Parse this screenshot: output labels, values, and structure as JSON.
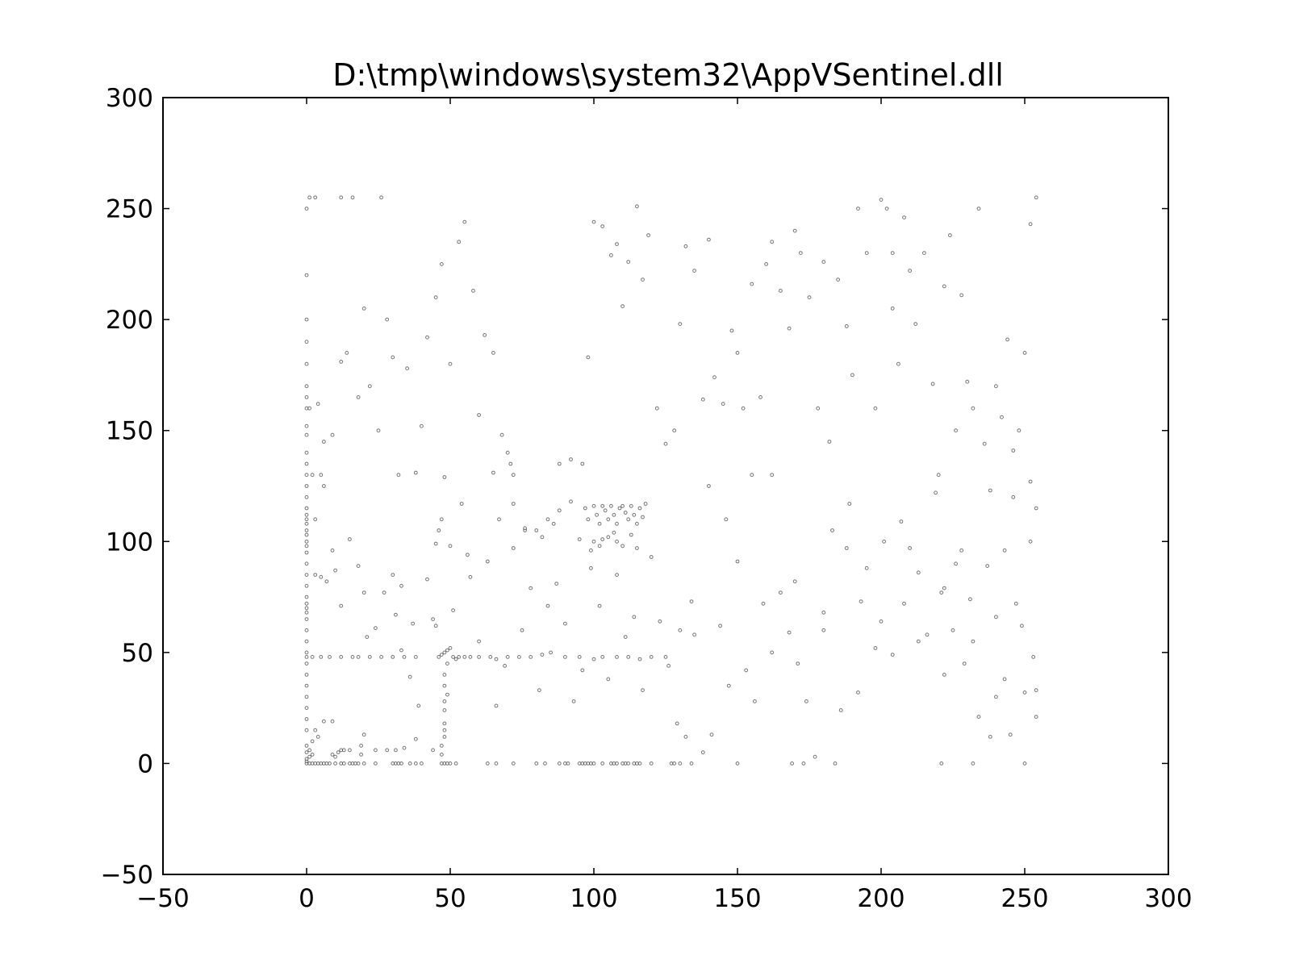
{
  "chart_data": {
    "type": "scatter",
    "title": "D:\\tmp\\windows\\system32\\AppVSentinel.dll",
    "xlabel": "",
    "ylabel": "",
    "xlim": [
      -50,
      300
    ],
    "ylim": [
      -50,
      300
    ],
    "xticks": [
      -50,
      0,
      50,
      100,
      150,
      200,
      250,
      300
    ],
    "yticks": [
      -50,
      0,
      50,
      100,
      150,
      200,
      250,
      300
    ],
    "xtick_labels": [
      "−50",
      "0",
      "50",
      "100",
      "150",
      "200",
      "250",
      "300"
    ],
    "ytick_labels": [
      "−50",
      "0",
      "50",
      "100",
      "150",
      "200",
      "250",
      "300"
    ],
    "grid": false,
    "marker_color": "#000000",
    "points": [
      [
        0,
        0
      ],
      [
        1,
        0
      ],
      [
        2,
        0
      ],
      [
        3,
        0
      ],
      [
        4,
        0
      ],
      [
        5,
        0
      ],
      [
        6,
        0
      ],
      [
        7,
        0
      ],
      [
        8,
        0
      ],
      [
        10,
        0
      ],
      [
        12,
        0
      ],
      [
        13,
        0
      ],
      [
        15,
        0
      ],
      [
        16,
        0
      ],
      [
        17,
        0
      ],
      [
        18,
        0
      ],
      [
        20,
        0
      ],
      [
        24,
        0
      ],
      [
        30,
        0
      ],
      [
        31,
        0
      ],
      [
        32,
        0
      ],
      [
        33,
        0
      ],
      [
        36,
        0
      ],
      [
        38,
        0
      ],
      [
        40,
        0
      ],
      [
        47,
        0
      ],
      [
        48,
        0
      ],
      [
        49,
        0
      ],
      [
        50,
        0
      ],
      [
        52,
        0
      ],
      [
        63,
        0
      ],
      [
        66,
        0
      ],
      [
        72,
        0
      ],
      [
        80,
        0
      ],
      [
        83,
        0
      ],
      [
        88,
        0
      ],
      [
        90,
        0
      ],
      [
        91,
        0
      ],
      [
        95,
        0
      ],
      [
        96,
        0
      ],
      [
        97,
        0
      ],
      [
        98,
        0
      ],
      [
        99,
        0
      ],
      [
        100,
        0
      ],
      [
        103,
        0
      ],
      [
        106,
        0
      ],
      [
        107,
        0
      ],
      [
        108,
        0
      ],
      [
        110,
        0
      ],
      [
        111,
        0
      ],
      [
        112,
        0
      ],
      [
        114,
        0
      ],
      [
        115,
        0
      ],
      [
        116,
        0
      ],
      [
        120,
        0
      ],
      [
        127,
        0
      ],
      [
        128,
        0
      ],
      [
        130,
        0
      ],
      [
        134,
        0
      ],
      [
        150,
        0
      ],
      [
        169,
        0
      ],
      [
        173,
        0
      ],
      [
        184,
        0
      ],
      [
        221,
        0
      ],
      [
        232,
        0
      ],
      [
        250,
        0
      ],
      [
        0,
        1
      ],
      [
        0,
        2
      ],
      [
        1,
        3
      ],
      [
        2,
        4
      ],
      [
        0,
        5
      ],
      [
        1,
        6
      ],
      [
        0,
        8
      ],
      [
        2,
        10
      ],
      [
        4,
        12
      ],
      [
        3,
        15
      ],
      [
        6,
        19
      ],
      [
        9,
        19
      ],
      [
        12,
        6
      ],
      [
        13,
        6
      ],
      [
        15,
        6
      ],
      [
        19,
        4
      ],
      [
        19,
        8
      ],
      [
        9,
        4
      ],
      [
        10,
        3
      ],
      [
        11,
        5
      ],
      [
        20,
        13
      ],
      [
        24,
        6
      ],
      [
        28,
        6
      ],
      [
        31,
        6
      ],
      [
        34,
        7
      ],
      [
        38,
        11
      ],
      [
        44,
        6
      ],
      [
        47,
        4
      ],
      [
        47,
        8
      ],
      [
        48,
        12
      ],
      [
        48,
        15
      ],
      [
        48,
        18
      ],
      [
        48,
        24
      ],
      [
        48,
        28
      ],
      [
        49,
        31
      ],
      [
        48,
        35
      ],
      [
        48,
        40
      ],
      [
        49,
        45
      ],
      [
        0,
        15
      ],
      [
        0,
        20
      ],
      [
        0,
        25
      ],
      [
        0,
        30
      ],
      [
        0,
        35
      ],
      [
        0,
        40
      ],
      [
        0,
        45
      ],
      [
        0,
        48
      ],
      [
        0,
        50
      ],
      [
        0,
        55
      ],
      [
        0,
        60
      ],
      [
        0,
        65
      ],
      [
        0,
        68
      ],
      [
        0,
        70
      ],
      [
        0,
        72
      ],
      [
        0,
        75
      ],
      [
        0,
        80
      ],
      [
        0,
        85
      ],
      [
        0,
        90
      ],
      [
        0,
        95
      ],
      [
        0,
        98
      ],
      [
        0,
        100
      ],
      [
        0,
        103
      ],
      [
        0,
        105
      ],
      [
        0,
        108
      ],
      [
        0,
        110
      ],
      [
        0,
        112
      ],
      [
        0,
        115
      ],
      [
        0,
        120
      ],
      [
        0,
        125
      ],
      [
        0,
        130
      ],
      [
        0,
        135
      ],
      [
        0,
        140
      ],
      [
        0,
        148
      ],
      [
        0,
        152
      ],
      [
        0,
        160
      ],
      [
        0,
        165
      ],
      [
        0,
        170
      ],
      [
        0,
        180
      ],
      [
        0,
        190
      ],
      [
        0,
        200
      ],
      [
        0,
        220
      ],
      [
        0,
        250
      ],
      [
        1,
        255
      ],
      [
        3,
        255
      ],
      [
        12,
        255
      ],
      [
        16,
        255
      ],
      [
        26,
        255
      ],
      [
        2,
        48
      ],
      [
        5,
        48
      ],
      [
        8,
        48
      ],
      [
        12,
        48
      ],
      [
        16,
        48
      ],
      [
        18,
        48
      ],
      [
        22,
        48
      ],
      [
        26,
        48
      ],
      [
        30,
        48
      ],
      [
        34,
        48
      ],
      [
        38,
        48
      ],
      [
        46,
        48
      ],
      [
        47,
        49
      ],
      [
        48,
        50
      ],
      [
        49,
        51
      ],
      [
        50,
        52
      ],
      [
        51,
        48
      ],
      [
        52,
        47
      ],
      [
        53,
        48
      ],
      [
        55,
        48
      ],
      [
        57,
        48
      ],
      [
        60,
        48
      ],
      [
        64,
        48
      ],
      [
        66,
        47
      ],
      [
        70,
        48
      ],
      [
        74,
        48
      ],
      [
        78,
        48
      ],
      [
        82,
        49
      ],
      [
        85,
        50
      ],
      [
        90,
        48
      ],
      [
        95,
        48
      ],
      [
        100,
        47
      ],
      [
        103,
        48
      ],
      [
        108,
        48
      ],
      [
        112,
        48
      ],
      [
        116,
        47
      ],
      [
        120,
        48
      ],
      [
        125,
        48
      ],
      [
        97,
        115
      ],
      [
        98,
        110
      ],
      [
        100,
        116
      ],
      [
        101,
        112
      ],
      [
        102,
        108
      ],
      [
        103,
        116
      ],
      [
        104,
        114
      ],
      [
        105,
        110
      ],
      [
        106,
        116
      ],
      [
        107,
        112
      ],
      [
        108,
        108
      ],
      [
        109,
        115
      ],
      [
        110,
        116
      ],
      [
        111,
        113
      ],
      [
        112,
        110
      ],
      [
        113,
        116
      ],
      [
        114,
        112
      ],
      [
        115,
        108
      ],
      [
        116,
        115
      ],
      [
        117,
        111
      ],
      [
        118,
        117
      ],
      [
        100,
        100
      ],
      [
        102,
        98
      ],
      [
        105,
        102
      ],
      [
        108,
        100
      ],
      [
        110,
        98
      ],
      [
        113,
        103
      ],
      [
        115,
        97
      ],
      [
        99,
        96
      ],
      [
        103,
        101
      ],
      [
        107,
        104
      ],
      [
        2,
        130
      ],
      [
        5,
        130
      ],
      [
        3,
        85
      ],
      [
        5,
        84
      ],
      [
        7,
        82
      ],
      [
        10,
        87
      ],
      [
        20,
        77
      ],
      [
        31,
        67
      ],
      [
        33,
        80
      ],
      [
        37,
        63
      ],
      [
        44,
        65
      ],
      [
        45,
        99
      ],
      [
        46,
        105
      ],
      [
        47,
        110
      ],
      [
        48,
        129
      ],
      [
        50,
        98
      ],
      [
        56,
        94
      ],
      [
        65,
        131
      ],
      [
        67,
        110
      ],
      [
        70,
        140
      ],
      [
        71,
        135
      ],
      [
        72,
        130
      ],
      [
        76,
        105
      ],
      [
        82,
        102
      ],
      [
        86,
        108
      ],
      [
        88,
        114
      ],
      [
        92,
        118
      ],
      [
        96,
        135
      ],
      [
        130,
        60
      ],
      [
        134,
        73
      ],
      [
        140,
        125
      ],
      [
        146,
        110
      ],
      [
        155,
        130
      ],
      [
        162,
        130
      ],
      [
        170,
        82
      ],
      [
        180,
        60
      ],
      [
        188,
        97
      ],
      [
        193,
        73
      ],
      [
        200,
        64
      ],
      [
        204,
        205
      ],
      [
        208,
        72
      ],
      [
        213,
        55
      ],
      [
        222,
        79
      ],
      [
        226,
        90
      ],
      [
        232,
        55
      ],
      [
        240,
        30
      ],
      [
        245,
        13
      ],
      [
        252,
        127
      ],
      [
        254,
        115
      ],
      [
        1,
        160
      ],
      [
        4,
        162
      ],
      [
        6,
        145
      ],
      [
        9,
        148
      ],
      [
        12,
        181
      ],
      [
        14,
        185
      ],
      [
        18,
        165
      ],
      [
        20,
        205
      ],
      [
        22,
        170
      ],
      [
        25,
        150
      ],
      [
        28,
        200
      ],
      [
        30,
        183
      ],
      [
        32,
        130
      ],
      [
        35,
        178
      ],
      [
        38,
        131
      ],
      [
        40,
        152
      ],
      [
        42,
        192
      ],
      [
        45,
        210
      ],
      [
        47,
        225
      ],
      [
        50,
        180
      ],
      [
        53,
        235
      ],
      [
        55,
        244
      ],
      [
        58,
        213
      ],
      [
        60,
        157
      ],
      [
        62,
        193
      ],
      [
        65,
        185
      ],
      [
        68,
        148
      ],
      [
        72,
        117
      ],
      [
        76,
        106
      ],
      [
        80,
        105
      ],
      [
        84,
        110
      ],
      [
        88,
        135
      ],
      [
        92,
        137
      ],
      [
        95,
        101
      ],
      [
        98,
        183
      ],
      [
        100,
        244
      ],
      [
        103,
        242
      ],
      [
        106,
        229
      ],
      [
        108,
        234
      ],
      [
        110,
        206
      ],
      [
        112,
        226
      ],
      [
        115,
        251
      ],
      [
        117,
        218
      ],
      [
        119,
        238
      ],
      [
        122,
        160
      ],
      [
        125,
        144
      ],
      [
        128,
        150
      ],
      [
        130,
        198
      ],
      [
        132,
        233
      ],
      [
        135,
        222
      ],
      [
        138,
        164
      ],
      [
        140,
        236
      ],
      [
        142,
        174
      ],
      [
        145,
        162
      ],
      [
        148,
        195
      ],
      [
        150,
        185
      ],
      [
        152,
        160
      ],
      [
        155,
        216
      ],
      [
        158,
        165
      ],
      [
        160,
        225
      ],
      [
        162,
        235
      ],
      [
        165,
        213
      ],
      [
        168,
        196
      ],
      [
        170,
        240
      ],
      [
        172,
        230
      ],
      [
        175,
        210
      ],
      [
        178,
        160
      ],
      [
        180,
        226
      ],
      [
        182,
        145
      ],
      [
        185,
        218
      ],
      [
        188,
        197
      ],
      [
        190,
        175
      ],
      [
        192,
        250
      ],
      [
        195,
        230
      ],
      [
        198,
        160
      ],
      [
        200,
        254
      ],
      [
        202,
        250
      ],
      [
        204,
        230
      ],
      [
        206,
        180
      ],
      [
        208,
        246
      ],
      [
        210,
        222
      ],
      [
        212,
        198
      ],
      [
        215,
        230
      ],
      [
        218,
        171
      ],
      [
        220,
        130
      ],
      [
        222,
        215
      ],
      [
        224,
        238
      ],
      [
        226,
        150
      ],
      [
        228,
        211
      ],
      [
        230,
        172
      ],
      [
        232,
        160
      ],
      [
        234,
        250
      ],
      [
        236,
        144
      ],
      [
        238,
        123
      ],
      [
        240,
        170
      ],
      [
        242,
        156
      ],
      [
        244,
        191
      ],
      [
        246,
        141
      ],
      [
        248,
        150
      ],
      [
        250,
        185
      ],
      [
        252,
        243
      ],
      [
        254,
        255
      ],
      [
        3,
        110
      ],
      [
        6,
        125
      ],
      [
        9,
        96
      ],
      [
        12,
        71
      ],
      [
        15,
        101
      ],
      [
        18,
        89
      ],
      [
        21,
        57
      ],
      [
        24,
        61
      ],
      [
        27,
        77
      ],
      [
        30,
        85
      ],
      [
        33,
        51
      ],
      [
        36,
        39
      ],
      [
        39,
        26
      ],
      [
        42,
        83
      ],
      [
        45,
        62
      ],
      [
        51,
        69
      ],
      [
        54,
        117
      ],
      [
        57,
        84
      ],
      [
        60,
        55
      ],
      [
        63,
        91
      ],
      [
        66,
        26
      ],
      [
        69,
        44
      ],
      [
        72,
        97
      ],
      [
        75,
        60
      ],
      [
        78,
        79
      ],
      [
        81,
        33
      ],
      [
        84,
        71
      ],
      [
        87,
        81
      ],
      [
        90,
        63
      ],
      [
        93,
        28
      ],
      [
        96,
        42
      ],
      [
        99,
        88
      ],
      [
        102,
        71
      ],
      [
        105,
        38
      ],
      [
        108,
        85
      ],
      [
        111,
        57
      ],
      [
        114,
        66
      ],
      [
        117,
        33
      ],
      [
        120,
        93
      ],
      [
        123,
        64
      ],
      [
        126,
        44
      ],
      [
        129,
        18
      ],
      [
        132,
        12
      ],
      [
        135,
        58
      ],
      [
        138,
        5
      ],
      [
        141,
        13
      ],
      [
        144,
        62
      ],
      [
        147,
        35
      ],
      [
        150,
        91
      ],
      [
        153,
        42
      ],
      [
        156,
        28
      ],
      [
        159,
        72
      ],
      [
        162,
        50
      ],
      [
        165,
        77
      ],
      [
        168,
        59
      ],
      [
        171,
        45
      ],
      [
        174,
        28
      ],
      [
        177,
        3
      ],
      [
        180,
        68
      ],
      [
        183,
        105
      ],
      [
        186,
        24
      ],
      [
        189,
        117
      ],
      [
        192,
        32
      ],
      [
        195,
        88
      ],
      [
        198,
        52
      ],
      [
        201,
        100
      ],
      [
        204,
        49
      ],
      [
        207,
        109
      ],
      [
        210,
        97
      ],
      [
        213,
        86
      ],
      [
        216,
        58
      ],
      [
        219,
        122
      ],
      [
        222,
        40
      ],
      [
        225,
        60
      ],
      [
        228,
        96
      ],
      [
        231,
        74
      ],
      [
        234,
        21
      ],
      [
        237,
        89
      ],
      [
        240,
        66
      ],
      [
        243,
        38
      ],
      [
        246,
        120
      ],
      [
        249,
        62
      ],
      [
        252,
        100
      ],
      [
        254,
        33
      ],
      [
        221,
        77
      ],
      [
        229,
        45
      ],
      [
        238,
        12
      ],
      [
        243,
        96
      ],
      [
        247,
        72
      ],
      [
        250,
        32
      ],
      [
        253,
        48
      ],
      [
        254,
        21
      ]
    ]
  }
}
